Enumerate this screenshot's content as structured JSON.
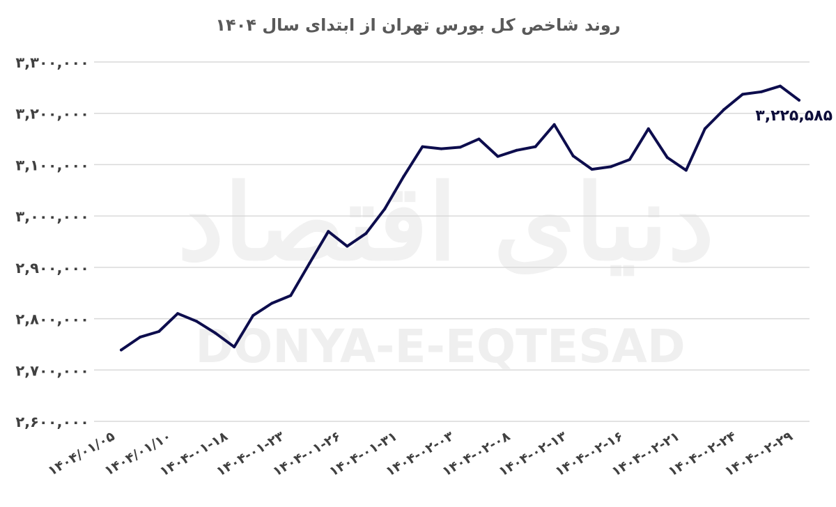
{
  "watermark": {
    "latin": "DONYA-E-EQTESAD",
    "logo": "دنیای اقتصاد"
  },
  "chart_data": {
    "type": "line",
    "title": "روند شاخص کل بورس تهران از ابتدای سال ۱۴۰۴",
    "xlabel": "",
    "ylabel": "",
    "ylim": [
      2600000,
      3300000
    ],
    "y_ticks": [
      2600000,
      2700000,
      2800000,
      2900000,
      3000000,
      3100000,
      3200000,
      3300000
    ],
    "y_tick_labels": [
      "۲,۶۰۰,۰۰۰",
      "۲,۷۰۰,۰۰۰",
      "۲,۸۰۰,۰۰۰",
      "۲,۹۰۰,۰۰۰",
      "۳,۰۰۰,۰۰۰",
      "۳,۱۰۰,۰۰۰",
      "۳,۲۰۰,۰۰۰",
      "۳,۳۰۰,۰۰۰"
    ],
    "grid": true,
    "legend": "none",
    "line_color": "#0d0d4d",
    "x_tick_labels": [
      {
        "index": 0,
        "label": "۱۴۰۴/۰۱/۰۵"
      },
      {
        "index": 3,
        "label": "۱۴۰۴/۰۱/۱۰"
      },
      {
        "index": 6,
        "label": "۱۴۰۴-۰۱-۱۸"
      },
      {
        "index": 9,
        "label": "۱۴۰۴-۰۱-۲۳"
      },
      {
        "index": 12,
        "label": "۱۴۰۴-۰۱-۲۶"
      },
      {
        "index": 15,
        "label": "۱۴۰۴-۰۱-۳۱"
      },
      {
        "index": 18,
        "label": "۱۴۰۴-۰۲-۰۳"
      },
      {
        "index": 21,
        "label": "۱۴۰۴-۰۲-۰۸"
      },
      {
        "index": 24,
        "label": "۱۴۰۴-۰۲-۱۳"
      },
      {
        "index": 27,
        "label": "۱۴۰۴-۰۲-۱۶"
      },
      {
        "index": 30,
        "label": "۱۴۰۴-۰۲-۲۱"
      },
      {
        "index": 33,
        "label": "۱۴۰۴-۰۲-۲۴"
      },
      {
        "index": 36,
        "label": "۱۴۰۴-۰۲-۲۹"
      }
    ],
    "series": [
      {
        "values": [
          2739000,
          2764000,
          2775000,
          2810000,
          2795000,
          2772000,
          2745000,
          2806000,
          2830000,
          2845000,
          2908000,
          2970000,
          2941000,
          2966000,
          3014000,
          3077000,
          3135000,
          3131000,
          3134000,
          3150000,
          3116000,
          3128000,
          3135000,
          3178000,
          3117000,
          3091000,
          3096000,
          3110000,
          3170000,
          3114000,
          3089000,
          3170000,
          3207000,
          3237000,
          3242000,
          3253000,
          3225585
        ]
      }
    ],
    "last_value_label": "۳,۲۲۵,۵۸۵"
  }
}
